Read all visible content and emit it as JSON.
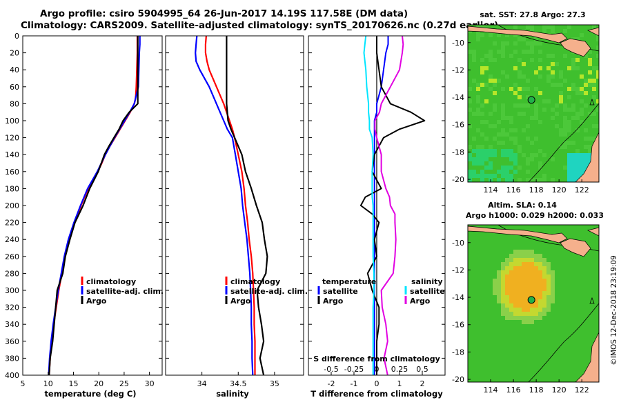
{
  "header": {
    "line1": "Argo profile: csiro 5904995_64 26-Jun-2017 14.19S 117.58E (DM data)",
    "line2": "Climatology: CARS2009. Satellite-adjusted climatology: synTS_20170626.nc (0.27d earlier)"
  },
  "colors": {
    "climatology": "#ff0000",
    "satellite": "#0000ff",
    "argo": "#000000",
    "sal_sat": "#00e5ff",
    "sal_argo": "#e100e1",
    "land": "#f5b08c"
  },
  "depth_ticks": [
    0,
    20,
    40,
    60,
    80,
    100,
    120,
    140,
    160,
    180,
    200,
    220,
    240,
    260,
    280,
    300,
    320,
    340,
    360,
    380,
    400
  ],
  "chart_data": [
    {
      "type": "line",
      "name": "temperature-profile",
      "xlabel": "temperature (deg C)",
      "xlim": [
        5,
        32.5
      ],
      "ylim": [
        0,
        400
      ],
      "xticks": [
        5,
        10,
        15,
        20,
        25,
        30
      ],
      "legend": [
        "climatology",
        "satellite-adj. clim.",
        "Argo"
      ],
      "depth": [
        0,
        10,
        20,
        40,
        60,
        70,
        75,
        80,
        90,
        100,
        110,
        120,
        130,
        140,
        150,
        160,
        180,
        200,
        220,
        240,
        260,
        280,
        300,
        320,
        340,
        360,
        380,
        400
      ],
      "series": [
        {
          "name": "climatology",
          "color": "#ff0000",
          "values": [
            27.6,
            27.6,
            27.6,
            27.5,
            27.4,
            27.3,
            27.2,
            27.0,
            26.2,
            25.2,
            24.2,
            23.2,
            22.2,
            21.3,
            20.6,
            19.8,
            17.9,
            16.5,
            15.2,
            14.1,
            13.3,
            12.7,
            12.1,
            11.6,
            11.1,
            10.7,
            10.4,
            10.2
          ]
        },
        {
          "name": "satellite-adj. clim.",
          "color": "#0000ff",
          "values": [
            28.1,
            28.1,
            28.0,
            27.9,
            27.8,
            27.4,
            27.2,
            27.0,
            26.1,
            25.1,
            24.1,
            23.1,
            22.2,
            21.3,
            20.5,
            19.7,
            17.8,
            16.4,
            15.1,
            14.0,
            13.2,
            12.6,
            12.0,
            11.5,
            11.0,
            10.6,
            10.3,
            10.1
          ]
        },
        {
          "name": "Argo",
          "color": "#000000",
          "values": [
            27.7,
            27.7,
            27.7,
            27.7,
            27.7,
            27.7,
            27.7,
            27.7,
            26.0,
            24.8,
            24.0,
            23.0,
            22.0,
            21.1,
            20.5,
            19.9,
            18.2,
            16.9,
            15.3,
            14.3,
            13.4,
            12.9,
            11.8,
            11.5,
            11.2,
            10.9,
            10.4,
            10.2
          ]
        }
      ]
    },
    {
      "type": "line",
      "name": "salinity-profile",
      "xlabel": "salinity",
      "xlim": [
        33.5,
        35.4
      ],
      "ylim": [
        0,
        400
      ],
      "xticks": [
        34,
        34.5,
        35
      ],
      "legend": [
        "climatology",
        "satellite-adj. clim.",
        "Argo"
      ],
      "depth": [
        0,
        10,
        20,
        30,
        40,
        60,
        80,
        100,
        110,
        120,
        140,
        160,
        180,
        200,
        220,
        240,
        260,
        280,
        300,
        320,
        340,
        360,
        380,
        400
      ],
      "series": [
        {
          "name": "climatology",
          "color": "#ff0000",
          "values": [
            34.06,
            34.05,
            34.05,
            34.07,
            34.1,
            34.2,
            34.3,
            34.38,
            34.42,
            34.45,
            34.5,
            34.55,
            34.58,
            34.6,
            34.63,
            34.65,
            34.68,
            34.7,
            34.71,
            34.72,
            34.72,
            34.73,
            34.73,
            34.73
          ]
        },
        {
          "name": "satellite-adj. clim.",
          "color": "#0000ff",
          "values": [
            33.93,
            33.92,
            33.91,
            33.92,
            33.97,
            34.1,
            34.2,
            34.3,
            34.35,
            34.42,
            34.46,
            34.5,
            34.54,
            34.56,
            34.59,
            34.62,
            34.64,
            34.66,
            34.67,
            34.68,
            34.68,
            34.69,
            34.69,
            34.7
          ]
        },
        {
          "name": "Argo",
          "color": "#000000",
          "values": [
            34.34,
            34.34,
            34.34,
            34.34,
            34.34,
            34.34,
            34.34,
            34.36,
            34.4,
            34.45,
            34.55,
            34.6,
            34.68,
            34.75,
            34.83,
            34.86,
            34.9,
            34.88,
            34.76,
            34.78,
            34.82,
            34.85,
            34.8,
            34.85
          ]
        }
      ]
    },
    {
      "type": "line",
      "name": "difference-profile",
      "xlabel": "T difference from climatology",
      "xlabel2": "S difference from climatology",
      "xlim": [
        -3,
        3
      ],
      "ylim": [
        0,
        400
      ],
      "xticks": [
        -2,
        -1,
        0,
        1,
        2
      ],
      "sticks": [
        -0.5,
        -0.25,
        0,
        0.25,
        0.5
      ],
      "legend_temperature": {
        "title": "temperature",
        "items": [
          "satellite",
          "Argo"
        ]
      },
      "legend_salinity": {
        "title": "salinity",
        "items": [
          "satellite",
          "Argo"
        ]
      },
      "depth": [
        0,
        10,
        20,
        40,
        60,
        80,
        90,
        100,
        110,
        120,
        140,
        160,
        180,
        190,
        200,
        210,
        220,
        240,
        260,
        280,
        300,
        320,
        340,
        360,
        380,
        400
      ],
      "series": [
        {
          "name": "T satellite",
          "color": "#0000ff",
          "values": [
            0.5,
            0.5,
            0.4,
            0.3,
            0.2,
            0.0,
            0.0,
            -0.1,
            -0.1,
            -0.1,
            -0.1,
            -0.1,
            -0.1,
            -0.1,
            -0.1,
            -0.1,
            -0.1,
            -0.1,
            -0.1,
            -0.1,
            -0.1,
            -0.1,
            -0.1,
            -0.1,
            -0.1,
            -0.1
          ]
        },
        {
          "name": "T Argo",
          "color": "#000000",
          "values": [
            0.0,
            0.0,
            0.0,
            0.1,
            0.2,
            0.6,
            1.5,
            2.1,
            1.0,
            0.3,
            -0.1,
            -0.2,
            0.2,
            -0.5,
            -0.7,
            -0.2,
            0.1,
            -0.1,
            0.0,
            -0.4,
            -0.2,
            0.1,
            0.1,
            0.0,
            0.0,
            0.0
          ]
        },
        {
          "name": "S satellite",
          "color": "#00e5ff",
          "values": [
            -0.12,
            -0.13,
            -0.14,
            -0.12,
            -0.11,
            -0.09,
            -0.09,
            -0.08,
            -0.08,
            -0.05,
            -0.04,
            -0.05,
            -0.05,
            -0.05,
            -0.04,
            -0.04,
            -0.04,
            -0.04,
            -0.04,
            -0.03,
            -0.03,
            -0.04,
            -0.04,
            -0.04,
            -0.04,
            -0.04
          ]
        },
        {
          "name": "S Argo",
          "color": "#e100e1",
          "values": [
            0.28,
            0.29,
            0.28,
            0.25,
            0.15,
            0.05,
            0.03,
            -0.02,
            -0.02,
            0.0,
            0.05,
            0.05,
            0.1,
            0.14,
            0.15,
            0.2,
            0.2,
            0.21,
            0.2,
            0.18,
            0.05,
            0.06,
            0.1,
            0.12,
            0.08,
            0.12
          ]
        }
      ]
    },
    {
      "type": "heatmap",
      "name": "sst-map",
      "title": "sat. SST: 27.8 Argo: 27.3",
      "xticks": [
        114,
        116,
        118,
        120,
        122
      ],
      "yticks": [
        -10,
        -12,
        -14,
        -16,
        -18,
        -20
      ],
      "xlim": [
        112,
        123.5
      ],
      "ylim": [
        -20.2,
        -8.7
      ],
      "argo_position": [
        117.58,
        -14.19
      ]
    },
    {
      "type": "heatmap",
      "name": "sla-map",
      "title": "Altim. SLA: 0.14",
      "subtitle": "Argo h1000: 0.029 h2000: 0.033",
      "xticks": [
        114,
        116,
        118,
        120,
        122
      ],
      "yticks": [
        -10,
        -12,
        -14,
        -16,
        -18,
        -20
      ],
      "xlim": [
        112,
        123.5
      ],
      "ylim": [
        -20.2,
        -8.7
      ],
      "argo_position": [
        117.58,
        -14.19
      ]
    }
  ],
  "credit": "©IMOS 12-Dec-2018 23:19:09"
}
